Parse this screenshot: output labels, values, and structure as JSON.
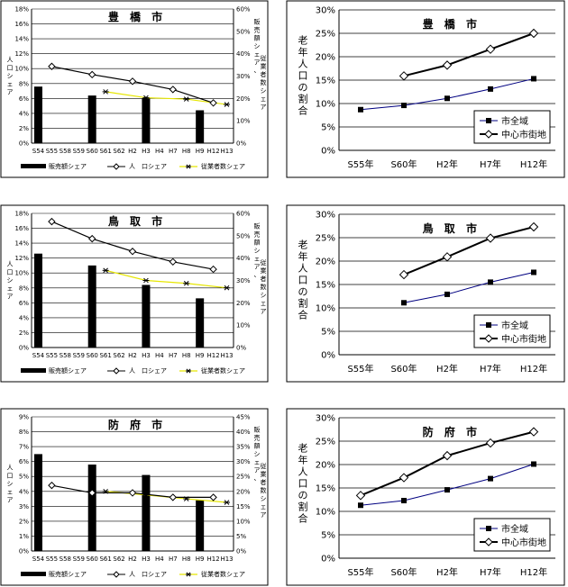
{
  "chart_data": [
    {
      "type": "bar+line",
      "title": "豊 橋 市",
      "ylabel": "人口シェア",
      "y2label": "販売額シェア、従業者数シェア",
      "categories": [
        "S54",
        "S55",
        "S58",
        "S59",
        "S60",
        "S61",
        "S62",
        "H2",
        "H3",
        "H4",
        "H7",
        "H8",
        "H9",
        "H12",
        "H13"
      ],
      "ylim": [
        0,
        18
      ],
      "y_ticks": [
        "0%",
        "2%",
        "4%",
        "6%",
        "8%",
        "10%",
        "12%",
        "14%",
        "16%",
        "18%"
      ],
      "y2lim": [
        0,
        60
      ],
      "y2_ticks": [
        "0%",
        "10%",
        "20%",
        "30%",
        "40%",
        "50%",
        "60%"
      ],
      "legend": [
        "販売額シェア",
        "人　口シェア",
        "従業者数シェア"
      ],
      "series": [
        {
          "name": "販売額シェア",
          "axis": "y2",
          "kind": "bar",
          "values": [
            25.3,
            null,
            null,
            null,
            21.3,
            null,
            null,
            null,
            20.0,
            null,
            null,
            null,
            14.7,
            null,
            null
          ]
        },
        {
          "name": "人　口シェア",
          "axis": "y",
          "kind": "line",
          "values": [
            null,
            10.3,
            null,
            null,
            9.2,
            null,
            null,
            8.3,
            null,
            null,
            7.2,
            null,
            null,
            5.4,
            null
          ]
        },
        {
          "name": "従業者数シェア",
          "axis": "y2",
          "kind": "line",
          "values": [
            null,
            null,
            null,
            null,
            null,
            23.0,
            null,
            null,
            20.3,
            null,
            null,
            19.7,
            null,
            null,
            17.3
          ]
        }
      ]
    },
    {
      "type": "line",
      "title": "豊 橋 市",
      "ylabel": "老年人口の割合",
      "categories": [
        "S55年",
        "S60年",
        "H2年",
        "H7年",
        "H12年"
      ],
      "ylim": [
        0,
        30
      ],
      "y_ticks": [
        "0%",
        "5%",
        "10%",
        "15%",
        "20%",
        "25%",
        "30%"
      ],
      "legend": [
        "市全域",
        "中心市街地"
      ],
      "series": [
        {
          "name": "市全域",
          "values": [
            8.7,
            9.6,
            11.1,
            13.1,
            15.3
          ]
        },
        {
          "name": "中心市街地",
          "values": [
            null,
            15.9,
            18.2,
            21.6,
            25.0
          ]
        }
      ]
    },
    {
      "type": "bar+line",
      "title": "鳥 取 市",
      "ylabel": "人口シェア",
      "y2label": "販売額シェア、従業者数シェア",
      "categories": [
        "S54",
        "S55",
        "S58",
        "S59",
        "S60",
        "S61",
        "S62",
        "H2",
        "H3",
        "H4",
        "H7",
        "H8",
        "H9",
        "H12",
        "H13"
      ],
      "ylim": [
        0,
        18
      ],
      "y_ticks": [
        "0%",
        "2%",
        "4%",
        "6%",
        "8%",
        "10%",
        "12%",
        "14%",
        "16%",
        "18%"
      ],
      "y2lim": [
        0,
        60
      ],
      "y2_ticks": [
        "0%",
        "10%",
        "20%",
        "30%",
        "40%",
        "50%",
        "60%"
      ],
      "legend": [
        "販売額シェア",
        "人　口シェア",
        "従業者数シェア"
      ],
      "series": [
        {
          "name": "販売額シェア",
          "axis": "y2",
          "kind": "bar",
          "values": [
            42.0,
            null,
            null,
            null,
            36.7,
            null,
            null,
            null,
            28.0,
            null,
            null,
            null,
            22.0,
            null,
            null
          ]
        },
        {
          "name": "人　口シェア",
          "axis": "y",
          "kind": "line",
          "values": [
            null,
            16.9,
            null,
            null,
            14.6,
            null,
            null,
            12.9,
            null,
            null,
            11.5,
            null,
            null,
            10.5,
            null
          ]
        },
        {
          "name": "従業者数シェア",
          "axis": "y2",
          "kind": "line",
          "values": [
            null,
            null,
            null,
            null,
            null,
            34.5,
            null,
            null,
            30.0,
            null,
            null,
            28.7,
            null,
            null,
            26.7
          ]
        }
      ]
    },
    {
      "type": "line",
      "title": "鳥 取 市",
      "ylabel": "老年人口の割合",
      "categories": [
        "S55年",
        "S60年",
        "H2年",
        "H7年",
        "H12年"
      ],
      "ylim": [
        0,
        30
      ],
      "y_ticks": [
        "0%",
        "5%",
        "10%",
        "15%",
        "20%",
        "25%",
        "30%"
      ],
      "legend": [
        "市全域",
        "中心市街地"
      ],
      "series": [
        {
          "name": "市全域",
          "values": [
            null,
            11.1,
            12.9,
            15.5,
            17.6
          ]
        },
        {
          "name": "中心市街地",
          "values": [
            null,
            17.1,
            20.9,
            24.9,
            27.3
          ]
        }
      ]
    },
    {
      "type": "bar+line",
      "title": "防 府 市",
      "ylabel": "人口シェア",
      "y2label": "販売額シェア、従業者数シェア",
      "categories": [
        "S54",
        "S55",
        "S58",
        "S59",
        "S60",
        "S61",
        "S62",
        "H2",
        "H3",
        "H4",
        "H7",
        "H8",
        "H9",
        "H12",
        "H13"
      ],
      "ylim": [
        0,
        9
      ],
      "y_ticks": [
        "0%",
        "1%",
        "2%",
        "3%",
        "4%",
        "5%",
        "6%",
        "7%",
        "8%",
        "9%"
      ],
      "y2lim": [
        0,
        45
      ],
      "y2_ticks": [
        "0%",
        "5%",
        "10%",
        "15%",
        "20%",
        "25%",
        "30%",
        "35%",
        "40%",
        "45%"
      ],
      "legend": [
        "販売額シェア",
        "人　口シェア",
        "従業者数シェア"
      ],
      "series": [
        {
          "name": "販売額シェア",
          "axis": "y2",
          "kind": "bar",
          "values": [
            32.5,
            null,
            null,
            null,
            29.0,
            null,
            null,
            null,
            25.5,
            null,
            null,
            null,
            17.0,
            null,
            null
          ]
        },
        {
          "name": "人　口シェア",
          "axis": "y",
          "kind": "line",
          "values": [
            null,
            4.4,
            null,
            null,
            3.9,
            null,
            null,
            3.9,
            null,
            null,
            3.6,
            null,
            null,
            3.6,
            null
          ]
        },
        {
          "name": "従業者数シェア",
          "axis": "y2",
          "kind": "line",
          "values": [
            null,
            null,
            null,
            null,
            null,
            20.0,
            null,
            null,
            18.8,
            null,
            null,
            17.5,
            null,
            null,
            16.3
          ]
        }
      ]
    },
    {
      "type": "line",
      "title": "防 府 市",
      "ylabel": "老年人口の割合",
      "categories": [
        "S55年",
        "S60年",
        "H2年",
        "H7年",
        "H12年"
      ],
      "ylim": [
        0,
        30
      ],
      "y_ticks": [
        "0%",
        "5%",
        "10%",
        "15%",
        "20%",
        "25%",
        "30%"
      ],
      "legend": [
        "市全域",
        "中心市街地"
      ],
      "series": [
        {
          "name": "市全域",
          "values": [
            11.3,
            12.3,
            14.6,
            17.0,
            20.1
          ]
        },
        {
          "name": "中心市街地",
          "values": [
            13.4,
            17.2,
            21.9,
            24.6,
            27.0
          ]
        }
      ]
    }
  ]
}
